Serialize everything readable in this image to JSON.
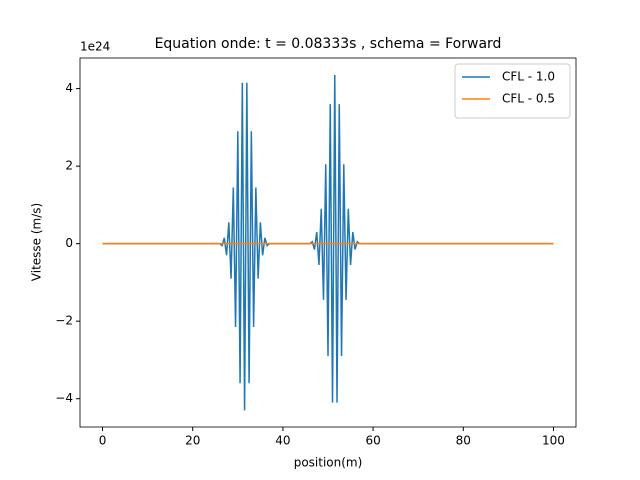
{
  "chart_data": {
    "type": "line",
    "title": "Equation onde: t = 0.08333s , schema = Forward",
    "x_label": "position(m)",
    "y_label": "Vitesse (m/s)",
    "y_offset_label": "1e24",
    "xlim": [
      -5,
      105
    ],
    "ylim": [
      -4.73,
      4.79
    ],
    "xticks": [
      0,
      20,
      40,
      60,
      80,
      100
    ],
    "yticks": [
      {
        "value": -4,
        "label": "−4"
      },
      {
        "value": -2,
        "label": "−2"
      },
      0,
      2,
      4
    ],
    "grid": false,
    "legend": "upper right",
    "series": [
      {
        "name": "CFL - 1.0",
        "color": "#1f77b4",
        "x": [
          0,
          26,
          26.5,
          27,
          27.5,
          28,
          28.5,
          29,
          29.5,
          30,
          30.5,
          31,
          31.5,
          32,
          32.5,
          33,
          33.5,
          34,
          34.5,
          35,
          35.5,
          36,
          36.5,
          37,
          46,
          46.5,
          47,
          47.5,
          48,
          48.5,
          49,
          49.5,
          50,
          50.5,
          51,
          51.5,
          52,
          52.5,
          53,
          53.5,
          54,
          54.5,
          55,
          55.5,
          56,
          56.5,
          57,
          100
        ],
        "values": [
          0,
          0,
          -0.05,
          0.15,
          -0.3,
          0.55,
          -0.9,
          1.45,
          -2.15,
          2.9,
          -3.6,
          4.15,
          -4.3,
          4.15,
          -3.6,
          2.9,
          -2.15,
          1.45,
          -0.9,
          0.55,
          -0.3,
          0.15,
          -0.05,
          0,
          0,
          0.05,
          -0.15,
          0.3,
          -0.55,
          0.9,
          -1.45,
          2.05,
          -2.9,
          3.6,
          -4.1,
          4.35,
          -4.1,
          3.6,
          -2.9,
          2.05,
          -1.45,
          0.9,
          -0.55,
          0.3,
          -0.15,
          0.05,
          0,
          0
        ]
      },
      {
        "name": "CFL - 0.5",
        "color": "#ff7f0e",
        "x": [
          0,
          100
        ],
        "values": [
          0,
          0
        ]
      }
    ]
  }
}
